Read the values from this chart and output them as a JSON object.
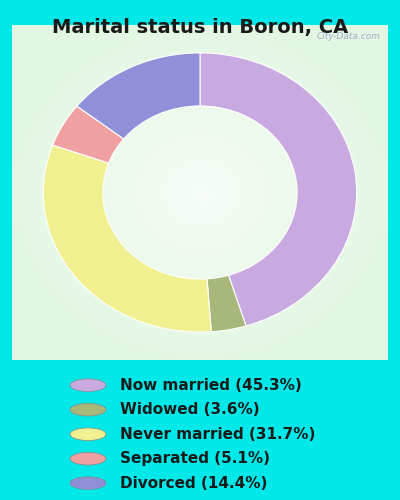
{
  "title": "Marital status in Boron, CA",
  "slices": [
    {
      "label": "Now married (45.3%)",
      "value": 45.3,
      "color": "#c8aae0"
    },
    {
      "label": "Widowed (3.6%)",
      "value": 3.6,
      "color": "#a8b87a"
    },
    {
      "label": "Never married (31.7%)",
      "value": 31.7,
      "color": "#f0f090"
    },
    {
      "label": "Separated (5.1%)",
      "value": 5.1,
      "color": "#f0a0a0"
    },
    {
      "label": "Divorced (14.4%)",
      "value": 14.4,
      "color": "#9090d8"
    }
  ],
  "background_color": "#00e8e8",
  "chart_bg_top": "#e8f5ec",
  "chart_bg_mid": "#f5fdf8",
  "title_fontsize": 14,
  "legend_fontsize": 11,
  "watermark": "City-Data.com",
  "donut_width": 0.38
}
